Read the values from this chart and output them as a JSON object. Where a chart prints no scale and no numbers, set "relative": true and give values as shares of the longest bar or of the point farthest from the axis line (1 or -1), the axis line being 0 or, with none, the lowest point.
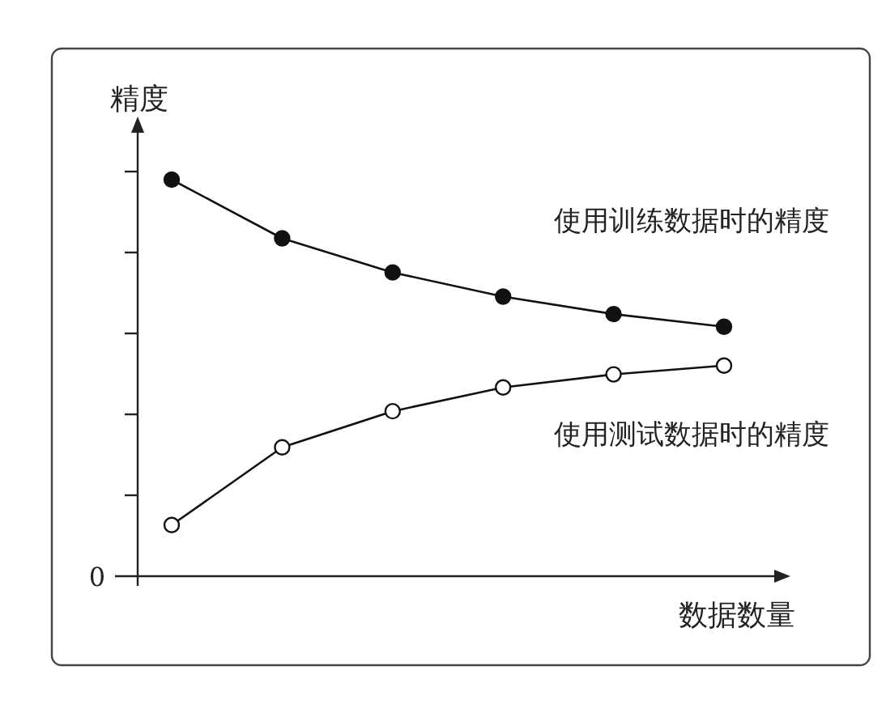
{
  "chart_data": {
    "type": "line",
    "relative": true,
    "xlabel": "数据数量",
    "ylabel": "精度",
    "annotations": [
      "0"
    ],
    "categories": [
      null,
      null,
      null,
      null,
      null,
      null
    ],
    "marker": "circle",
    "line_style": "solid",
    "series": [
      {
        "name": "使用训练数据时的精度",
        "color": "#111111",
        "values": [
          1,
          0.852,
          0.766,
          0.705,
          0.661,
          0.629
        ]
      },
      {
        "name": "使用测试数据时的精度",
        "color": "#111111",
        "values": [
          0.129,
          0.325,
          0.416,
          0.476,
          0.509,
          0.531
        ]
      }
    ]
  }
}
